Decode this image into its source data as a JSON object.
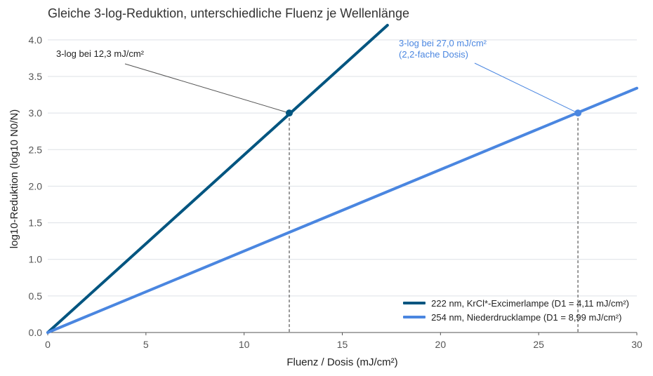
{
  "chart_data": {
    "type": "line",
    "title": "Gleiche 3-log-Reduktion, unterschiedliche Fluenz je Wellenlänge",
    "xlabel": "Fluenz / Dosis (mJ/cm²)",
    "ylabel": "log10-Reduktion (log10 N0/N)",
    "xlim": [
      0,
      30
    ],
    "ylim": [
      0,
      4.2
    ],
    "xticks": [
      0,
      5,
      10,
      15,
      20,
      25,
      30
    ],
    "yticks": [
      0.0,
      0.5,
      1.0,
      1.5,
      2.0,
      2.5,
      3.0,
      3.5,
      4.0
    ],
    "ytick_labels": [
      "0.0",
      "0.5",
      "1.0",
      "1.5",
      "2.0",
      "2.5",
      "3.0",
      "3.5",
      "4.0"
    ],
    "grid": "horizontal",
    "legend_position": "bottom-right",
    "series": [
      {
        "name": "222 nm, KrCl*-Excimerlampe (D1 = 4,11 mJ/cm²)",
        "color": "#005580",
        "x": [
          0,
          17.3
        ],
        "y": [
          0,
          4.2
        ],
        "marker": {
          "x": 12.3,
          "y": 3.0
        }
      },
      {
        "name": "254 nm, Niederdrucklampe (D1 = 8,99 mJ/cm²)",
        "color": "#4a86e0",
        "x": [
          0,
          30
        ],
        "y": [
          0,
          3.34
        ],
        "marker": {
          "x": 27.0,
          "y": 3.0
        }
      }
    ],
    "annotations": [
      {
        "lines": [
          "3-log bei 12,3 mJ/cm²"
        ],
        "color": "#222222",
        "line_color": "#555555",
        "target_series": 0
      },
      {
        "lines": [
          "3-log bei 27,0 mJ/cm²",
          "(2,2-fache Dosis)"
        ],
        "color": "#4a86e0",
        "line_color": "#4a86e0",
        "target_series": 1
      }
    ]
  }
}
